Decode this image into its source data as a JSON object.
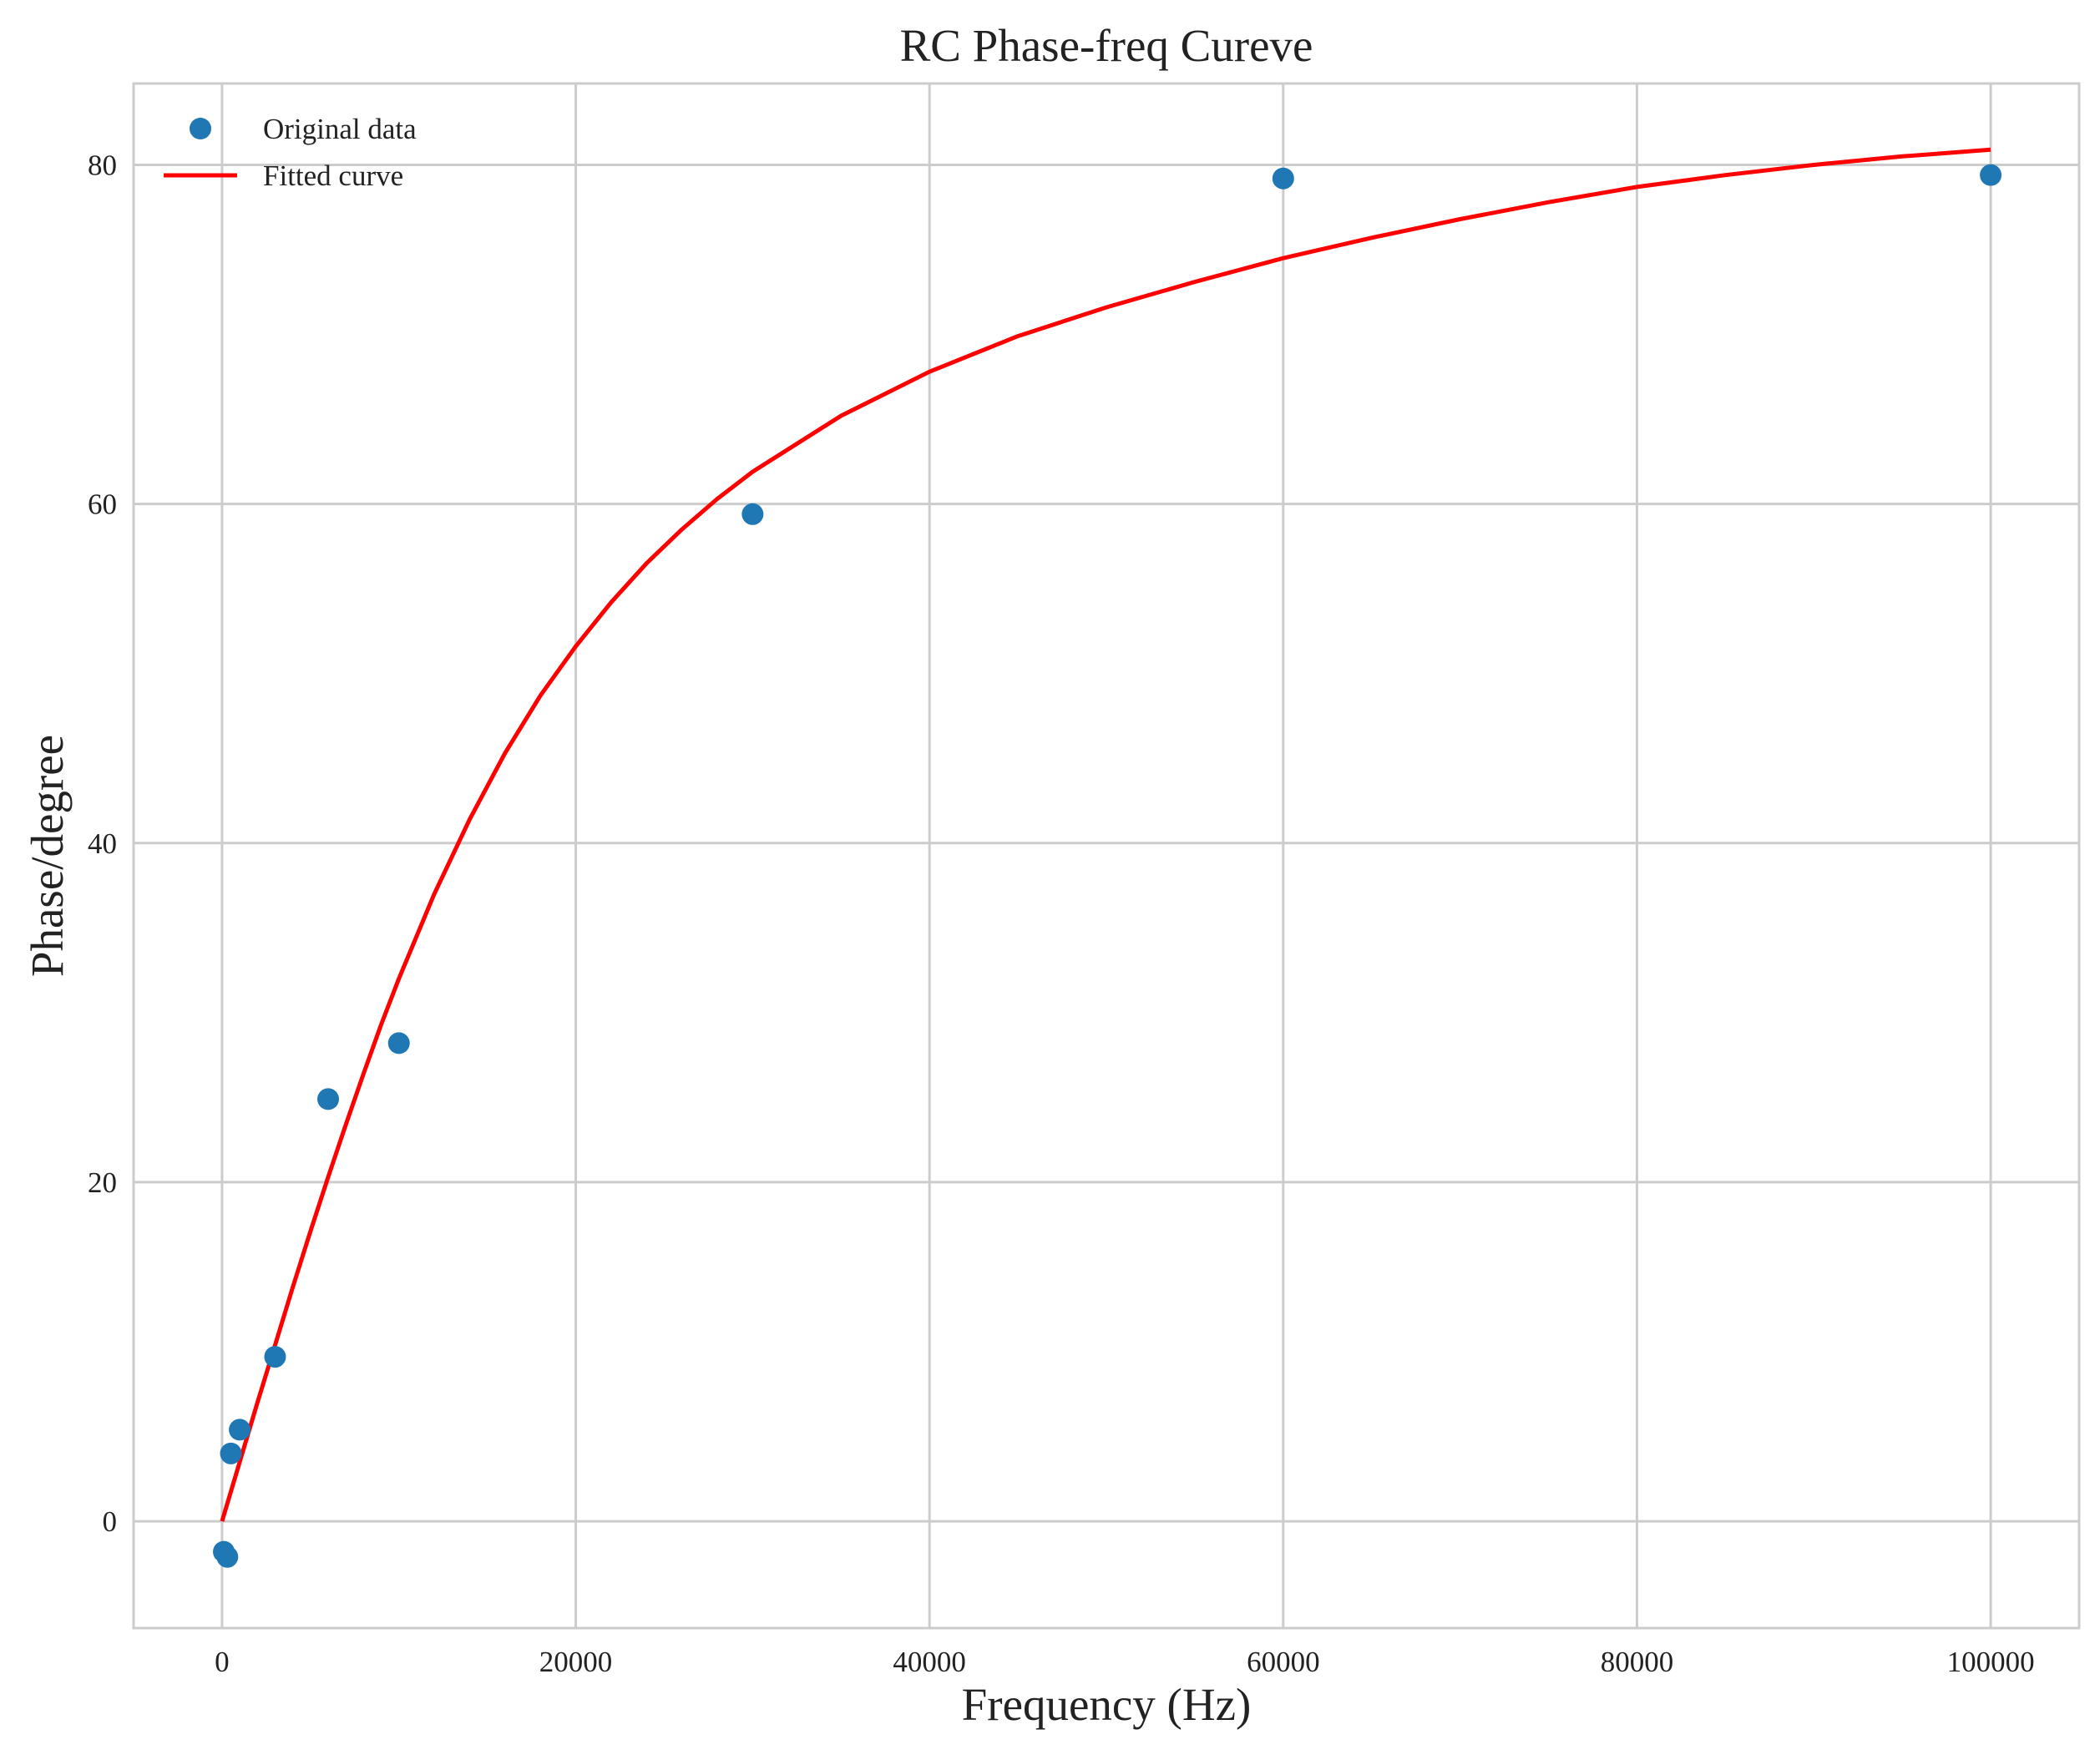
{
  "chart_data": {
    "type": "scatter",
    "title": "RC Phase-freq Cureve",
    "xlabel": "Frequency (Hz)",
    "ylabel": "Phase/degree",
    "xlim": [
      -5000,
      105000
    ],
    "ylim": [
      -6.3,
      84.8
    ],
    "xticks": [
      0,
      20000,
      40000,
      60000,
      80000,
      100000
    ],
    "yticks": [
      0,
      20,
      40,
      60,
      80
    ],
    "grid": true,
    "legend_position": "top-left",
    "series": [
      {
        "name": "Original data",
        "kind": "scatter",
        "color": "#1f77b4",
        "x": [
          100,
          300,
          500,
          1000,
          3000,
          6000,
          10000,
          30000,
          60000,
          100000
        ],
        "y": [
          -1.8,
          -2.1,
          4.0,
          5.4,
          9.7,
          24.9,
          28.2,
          59.4,
          79.2,
          79.4
        ]
      },
      {
        "name": "Fitted curve",
        "kind": "line",
        "color": "#ff0000",
        "x": [
          0,
          1000,
          2000,
          3000,
          4000,
          5000,
          6000,
          7000,
          8000,
          9000,
          10000,
          12000,
          14000,
          16000,
          18000,
          20000,
          22000,
          24000,
          26000,
          28000,
          30000,
          35000,
          40000,
          45000,
          50000,
          55000,
          60000,
          65000,
          70000,
          75000,
          80000,
          85000,
          90000,
          95000,
          100000
        ],
        "y": [
          0.0,
          3.5,
          7.0,
          10.4,
          13.8,
          17.1,
          20.3,
          23.4,
          26.4,
          29.3,
          32.0,
          37.0,
          41.4,
          45.3,
          48.7,
          51.6,
          54.2,
          56.5,
          58.5,
          60.3,
          61.9,
          65.2,
          67.8,
          69.9,
          71.6,
          73.1,
          74.5,
          75.7,
          76.8,
          77.8,
          78.7,
          79.4,
          80.0,
          80.5,
          80.9
        ]
      }
    ]
  }
}
